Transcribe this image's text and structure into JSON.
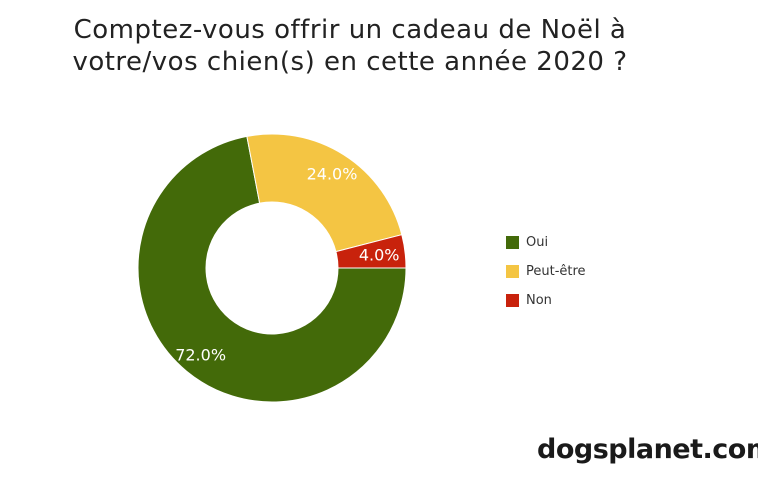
{
  "chart_data": {
    "type": "pie",
    "donut": true,
    "title_lines": [
      "Comptez-vous offrir un cadeau de Noël à",
      "votre/vos chien(s) en cette année 2020 ?"
    ],
    "series": [
      {
        "name": "Oui",
        "value": 72.0,
        "label": "72.0%",
        "color": "#436a09"
      },
      {
        "name": "Peut-être",
        "value": 24.0,
        "label": "24.0%",
        "color": "#f4c543"
      },
      {
        "name": "Non",
        "value": 4.0,
        "label": "4.0%",
        "color": "#c8220c"
      }
    ],
    "legend_position": "right"
  },
  "brand": "dogsplanet.com"
}
